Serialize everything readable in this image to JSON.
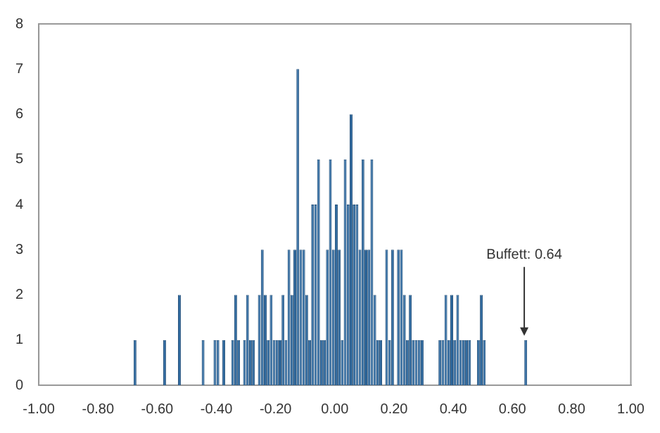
{
  "chart_data": {
    "type": "histogram",
    "bins": [
      -0.7,
      -0.69,
      -0.68,
      -0.67,
      -0.66,
      -0.65,
      -0.64,
      -0.63,
      -0.62,
      -0.61,
      -0.6,
      -0.59,
      -0.58,
      -0.57,
      -0.56,
      -0.55,
      -0.54,
      -0.53,
      -0.52,
      -0.51,
      -0.5,
      -0.49,
      -0.48,
      -0.47,
      -0.46,
      -0.45,
      -0.44,
      -0.43,
      -0.42,
      -0.41,
      -0.4,
      -0.39,
      -0.38,
      -0.37,
      -0.36,
      -0.35,
      -0.34,
      -0.33,
      -0.32,
      -0.31,
      -0.3,
      -0.29,
      -0.28,
      -0.27,
      -0.26,
      -0.25,
      -0.24,
      -0.23,
      -0.22,
      -0.21,
      -0.2,
      -0.19,
      -0.18,
      -0.17,
      -0.16,
      -0.15,
      -0.14,
      -0.13,
      -0.12,
      -0.11,
      -0.1,
      -0.09,
      -0.08,
      -0.07,
      -0.06,
      -0.05,
      -0.04,
      -0.03,
      -0.02,
      -0.01,
      0,
      0.01,
      0.02,
      0.03,
      0.04,
      0.05,
      0.06,
      0.07,
      0.08,
      0.09,
      0.1,
      0.11,
      0.12,
      0.13,
      0.14,
      0.15,
      0.16,
      0.17,
      0.18,
      0.19,
      0.2,
      0.21,
      0.22,
      0.23,
      0.24,
      0.25,
      0.26,
      0.27,
      0.28,
      0.29,
      0.3,
      0.31,
      0.32,
      0.33,
      0.34,
      0.35,
      0.36,
      0.37,
      0.38,
      0.39,
      0.4,
      0.41,
      0.42,
      0.43,
      0.44,
      0.45,
      0.46,
      0.47,
      0.48,
      0.49,
      0.5,
      0.51,
      0.52,
      0.53,
      0.54,
      0.55,
      0.56,
      0.57,
      0.58,
      0.59,
      0.6,
      0.61,
      0.62,
      0.63,
      0.64,
      0.65
    ],
    "values": [
      0,
      0,
      1,
      0,
      0,
      0,
      0,
      0,
      0,
      0,
      0,
      0,
      1,
      0,
      0,
      0,
      0,
      2,
      0,
      0,
      0,
      0,
      0,
      0,
      0,
      1,
      0,
      0,
      0,
      1,
      1,
      0,
      1,
      0,
      0,
      1,
      2,
      1,
      0,
      1,
      2,
      1,
      1,
      0,
      2,
      3,
      2,
      1,
      2,
      1,
      1,
      1,
      2,
      1,
      3,
      2,
      3,
      7,
      3,
      3,
      2,
      1,
      4,
      4,
      5,
      1,
      1,
      3,
      5,
      3,
      4,
      3,
      1,
      5,
      4,
      6,
      4,
      4,
      3,
      5,
      3,
      3,
      5,
      2,
      1,
      1,
      0,
      3,
      1,
      3,
      0,
      3,
      3,
      2,
      1,
      2,
      1,
      1,
      1,
      1,
      0,
      0,
      0,
      0,
      0,
      1,
      1,
      2,
      1,
      2,
      1,
      2,
      1,
      1,
      1,
      1,
      0,
      0,
      1,
      2,
      1,
      0,
      0,
      0,
      0,
      0,
      0,
      0,
      0,
      0,
      0,
      0,
      0,
      0,
      1
    ],
    "color": "#2f6aa0",
    "xlim": [
      -1,
      1
    ],
    "xticks": [
      {
        "value": -1,
        "label": "-1.00"
      },
      {
        "value": -0.8,
        "label": "-0.80"
      },
      {
        "value": -0.6,
        "label": "-0.60"
      },
      {
        "value": -0.4,
        "label": "-0.40"
      },
      {
        "value": -0.2,
        "label": "-0.20"
      },
      {
        "value": 0,
        "label": "0.00"
      },
      {
        "value": 0.2,
        "label": "0.20"
      },
      {
        "value": 0.4,
        "label": "0.40"
      },
      {
        "value": 0.6,
        "label": "0.60"
      },
      {
        "value": 0.8,
        "label": "0.80"
      },
      {
        "value": 1,
        "label": "1.00"
      }
    ],
    "ylim": [
      0,
      8
    ],
    "yticks": [
      0,
      1,
      2,
      3,
      4,
      5,
      6,
      7,
      8
    ],
    "annotations": [
      {
        "text": "Buffett: 0.64",
        "x": 0.64,
        "y": 1
      }
    ]
  }
}
